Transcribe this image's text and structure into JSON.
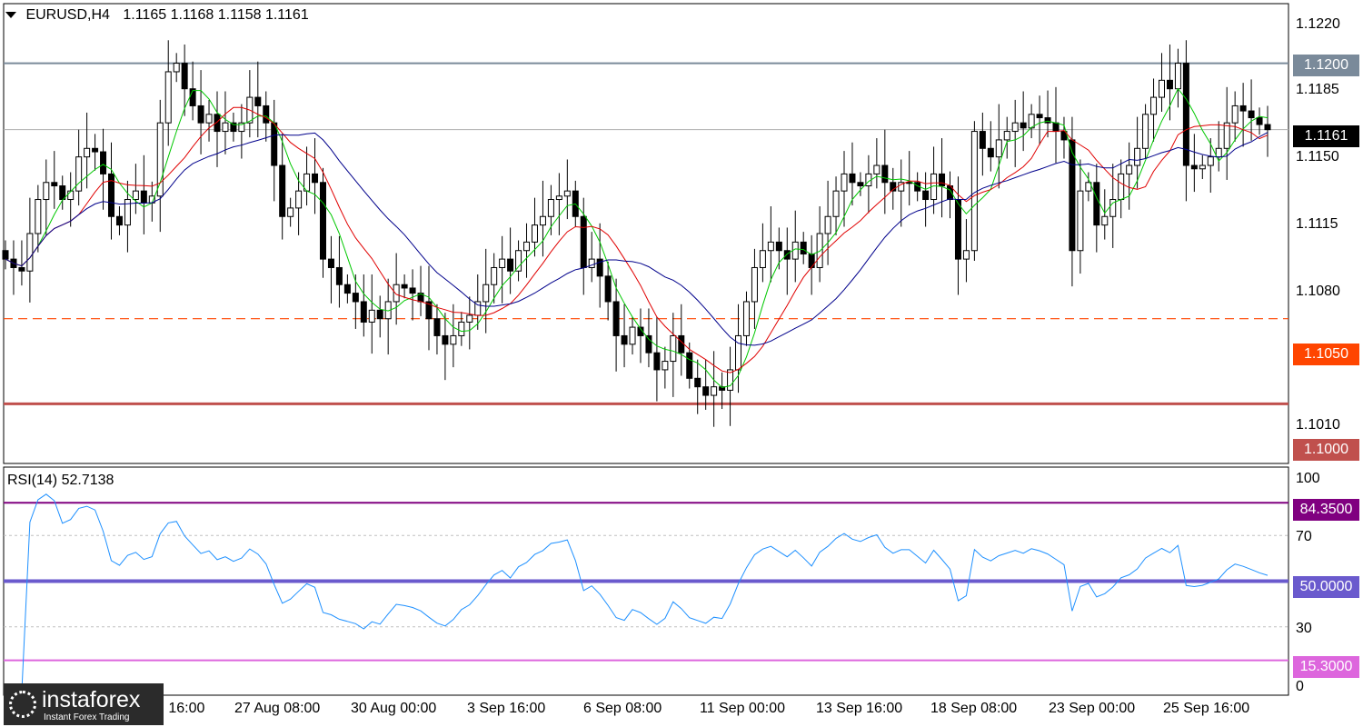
{
  "header": {
    "symbol_label": "EURUSD,H4",
    "ohlc": "1.1165 1.1168 1.1158 1.1161",
    "menu_icon": "triangle-down-icon"
  },
  "rsi_header": "RSI(14) 52.7138",
  "price_axis": [
    "1.1220",
    "1.1185",
    "1.1150",
    "1.1115",
    "1.1080",
    "1.1010"
  ],
  "rsi_axis": [
    "100",
    "70",
    "30",
    "0"
  ],
  "price_tags": {
    "resistance": {
      "text": "1.1200",
      "color": "#7a8a9a"
    },
    "current": {
      "text": "1.1161",
      "color": "#000000"
    },
    "support_mid": {
      "text": "1.1050",
      "color": "#ff4500"
    },
    "support": {
      "text": "1.1000",
      "color": "#c0504d"
    }
  },
  "rsi_tags": {
    "upper": {
      "text": "84.3500",
      "color": "#800080"
    },
    "mid": {
      "text": "50.0000",
      "color": "#6a5acd"
    },
    "lower": {
      "text": "15.3000",
      "color": "#dd66dd"
    }
  },
  "time_labels": [
    "2",
    "2 Aug 16:00",
    "27 Aug 08:00",
    "30 Aug 00:00",
    "3 Sep 16:00",
    "6 Sep 08:00",
    "11 Sep 00:00",
    "13 Sep 16:00",
    "18 Sep 08:00",
    "23 Sep 00:00",
    "25 Sep 16:00"
  ],
  "logo": {
    "name": "instaforex",
    "tagline": "Instant Forex Trading"
  },
  "chart_data": {
    "type": "candlestick",
    "symbol": "EURUSD",
    "timeframe": "H4",
    "ylim": [
      1.0965,
      1.1235
    ],
    "levels": [
      1.12,
      1.1161,
      1.105,
      1.1
    ],
    "ma_colors": {
      "fast": "#00c800",
      "mid": "#e00000",
      "slow": "#00008b"
    },
    "closes": [
      1.1085,
      1.108,
      1.1078,
      1.11,
      1.112,
      1.113,
      1.1128,
      1.112,
      1.1125,
      1.1145,
      1.115,
      1.1148,
      1.1135,
      1.111,
      1.1105,
      1.112,
      1.1125,
      1.1118,
      1.1122,
      1.1165,
      1.1195,
      1.12,
      1.1185,
      1.1175,
      1.1165,
      1.117,
      1.116,
      1.1165,
      1.116,
      1.1165,
      1.118,
      1.1175,
      1.1165,
      1.114,
      1.111,
      1.1115,
      1.1125,
      1.1135,
      1.113,
      1.1085,
      1.108,
      1.107,
      1.1065,
      1.106,
      1.1048,
      1.1055,
      1.105,
      1.106,
      1.107,
      1.1068,
      1.1065,
      1.106,
      1.105,
      1.104,
      1.1035,
      1.104,
      1.1048,
      1.1052,
      1.106,
      1.107,
      1.108,
      1.1085,
      1.1078,
      1.109,
      1.1095,
      1.1105,
      1.111,
      1.112,
      1.1122,
      1.1125,
      1.111,
      1.108,
      1.1085,
      1.1075,
      1.106,
      1.104,
      1.1035,
      1.1045,
      1.104,
      1.103,
      1.102,
      1.1025,
      1.104,
      1.103,
      1.1015,
      1.101,
      1.1005,
      1.101,
      1.1008,
      1.102,
      1.104,
      1.106,
      1.108,
      1.109,
      1.1095,
      1.109,
      1.1085,
      1.1095,
      1.1088,
      1.108,
      1.11,
      1.111,
      1.1125,
      1.1135,
      1.113,
      1.1128,
      1.1135,
      1.114,
      1.113,
      1.1125,
      1.113,
      1.113,
      1.1125,
      1.112,
      1.1135,
      1.1128,
      1.112,
      1.1085,
      1.109,
      1.116,
      1.115,
      1.1145,
      1.1155,
      1.116,
      1.1165,
      1.1162,
      1.117,
      1.1168,
      1.1165,
      1.116,
      1.1155,
      1.109,
      1.1125,
      1.113,
      1.1105,
      1.111,
      1.112,
      1.1135,
      1.114,
      1.115,
      1.117,
      1.118,
      1.119,
      1.1185,
      1.12,
      1.114,
      1.1138,
      1.114,
      1.1145,
      1.115,
      1.1165,
      1.1175,
      1.1172,
      1.1168,
      1.1164,
      1.1161
    ],
    "rsi": {
      "period": 14,
      "value": 52.7138,
      "levels": [
        84.35,
        50.0,
        15.3
      ],
      "ylim": [
        0,
        100
      ],
      "color": "#1e90ff"
    }
  }
}
